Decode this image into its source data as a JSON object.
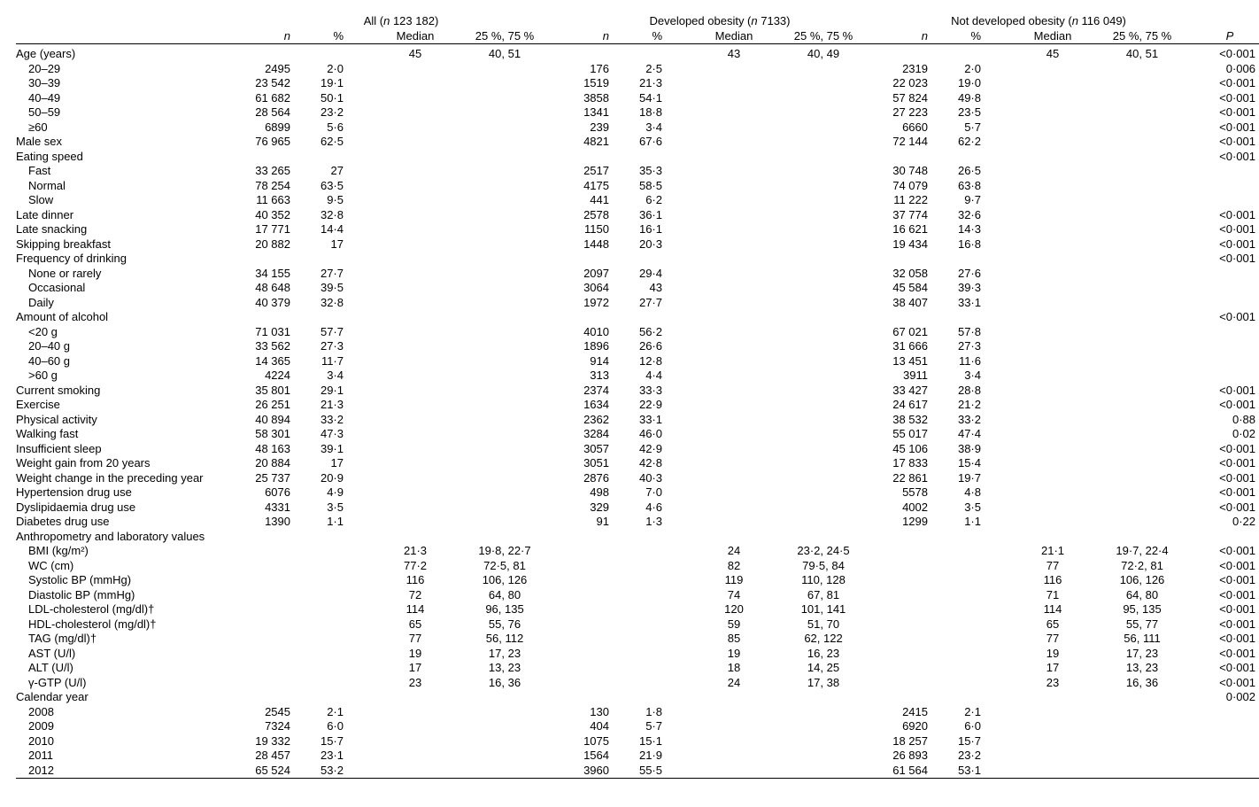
{
  "groups": [
    {
      "title_prefix": "All (",
      "n_label": "n",
      "n_value": " 123 182)",
      "hdrs": [
        "n",
        "%",
        "Median",
        "25 %, 75 %"
      ]
    },
    {
      "title_prefix": "Developed obesity (",
      "n_label": "n",
      "n_value": " 7133)",
      "hdrs": [
        "n",
        "%",
        "Median",
        "25 %, 75 %"
      ]
    },
    {
      "title_prefix": "Not developed obesity (",
      "n_label": "n",
      "n_value": " 116 049)",
      "hdrs": [
        "n",
        "%",
        "Median",
        "25 %, 75 %"
      ]
    }
  ],
  "p_label": "P",
  "rows": [
    {
      "lbl": "Age (years)",
      "ind": 0,
      "a": [
        "",
        "",
        "45",
        "40, 51"
      ],
      "b": [
        "",
        "",
        "43",
        "40, 49"
      ],
      "c": [
        "",
        "",
        "45",
        "40, 51"
      ],
      "p": "<0·001"
    },
    {
      "lbl": "20–29",
      "ind": 1,
      "a": [
        "2495",
        "2·0",
        "",
        ""
      ],
      "b": [
        "176",
        "2·5",
        "",
        ""
      ],
      "c": [
        "2319",
        "2·0",
        "",
        ""
      ],
      "p": "0·006"
    },
    {
      "lbl": "30–39",
      "ind": 1,
      "a": [
        "23 542",
        "19·1",
        "",
        ""
      ],
      "b": [
        "1519",
        "21·3",
        "",
        ""
      ],
      "c": [
        "22 023",
        "19·0",
        "",
        ""
      ],
      "p": "<0·001"
    },
    {
      "lbl": "40–49",
      "ind": 1,
      "a": [
        "61 682",
        "50·1",
        "",
        ""
      ],
      "b": [
        "3858",
        "54·1",
        "",
        ""
      ],
      "c": [
        "57 824",
        "49·8",
        "",
        ""
      ],
      "p": "<0·001"
    },
    {
      "lbl": "50–59",
      "ind": 1,
      "a": [
        "28 564",
        "23·2",
        "",
        ""
      ],
      "b": [
        "1341",
        "18·8",
        "",
        ""
      ],
      "c": [
        "27 223",
        "23·5",
        "",
        ""
      ],
      "p": "<0·001"
    },
    {
      "lbl": "≥60",
      "ind": 1,
      "a": [
        "6899",
        "5·6",
        "",
        ""
      ],
      "b": [
        "239",
        "3·4",
        "",
        ""
      ],
      "c": [
        "6660",
        "5·7",
        "",
        ""
      ],
      "p": "<0·001"
    },
    {
      "lbl": "Male sex",
      "ind": 0,
      "a": [
        "76 965",
        "62·5",
        "",
        ""
      ],
      "b": [
        "4821",
        "67·6",
        "",
        ""
      ],
      "c": [
        "72 144",
        "62·2",
        "",
        ""
      ],
      "p": "<0·001"
    },
    {
      "lbl": "Eating speed",
      "ind": 0,
      "a": [
        "",
        "",
        "",
        ""
      ],
      "b": [
        "",
        "",
        "",
        ""
      ],
      "c": [
        "",
        "",
        "",
        ""
      ],
      "p": "<0·001"
    },
    {
      "lbl": "Fast",
      "ind": 1,
      "a": [
        "33 265",
        "27",
        "",
        ""
      ],
      "b": [
        "2517",
        "35·3",
        "",
        ""
      ],
      "c": [
        "30 748",
        "26·5",
        "",
        ""
      ],
      "p": ""
    },
    {
      "lbl": "Normal",
      "ind": 1,
      "a": [
        "78 254",
        "63·5",
        "",
        ""
      ],
      "b": [
        "4175",
        "58·5",
        "",
        ""
      ],
      "c": [
        "74 079",
        "63·8",
        "",
        ""
      ],
      "p": ""
    },
    {
      "lbl": "Slow",
      "ind": 1,
      "a": [
        "11 663",
        "9·5",
        "",
        ""
      ],
      "b": [
        "441",
        "6·2",
        "",
        ""
      ],
      "c": [
        "11 222",
        "9·7",
        "",
        ""
      ],
      "p": ""
    },
    {
      "lbl": "Late dinner",
      "ind": 0,
      "a": [
        "40 352",
        "32·8",
        "",
        ""
      ],
      "b": [
        "2578",
        "36·1",
        "",
        ""
      ],
      "c": [
        "37 774",
        "32·6",
        "",
        ""
      ],
      "p": "<0·001"
    },
    {
      "lbl": "Late snacking",
      "ind": 0,
      "a": [
        "17 771",
        "14·4",
        "",
        ""
      ],
      "b": [
        "1150",
        "16·1",
        "",
        ""
      ],
      "c": [
        "16 621",
        "14·3",
        "",
        ""
      ],
      "p": "<0·001"
    },
    {
      "lbl": "Skipping breakfast",
      "ind": 0,
      "a": [
        "20 882",
        "17",
        "",
        ""
      ],
      "b": [
        "1448",
        "20·3",
        "",
        ""
      ],
      "c": [
        "19 434",
        "16·8",
        "",
        ""
      ],
      "p": "<0·001"
    },
    {
      "lbl": "Frequency of drinking",
      "ind": 0,
      "a": [
        "",
        "",
        "",
        ""
      ],
      "b": [
        "",
        "",
        "",
        ""
      ],
      "c": [
        "",
        "",
        "",
        ""
      ],
      "p": "<0·001"
    },
    {
      "lbl": "None or rarely",
      "ind": 1,
      "a": [
        "34 155",
        "27·7",
        "",
        ""
      ],
      "b": [
        "2097",
        "29·4",
        "",
        ""
      ],
      "c": [
        "32 058",
        "27·6",
        "",
        ""
      ],
      "p": ""
    },
    {
      "lbl": "Occasional",
      "ind": 1,
      "a": [
        "48 648",
        "39·5",
        "",
        ""
      ],
      "b": [
        "3064",
        "43",
        "",
        ""
      ],
      "c": [
        "45 584",
        "39·3",
        "",
        ""
      ],
      "p": ""
    },
    {
      "lbl": "Daily",
      "ind": 1,
      "a": [
        "40 379",
        "32·8",
        "",
        ""
      ],
      "b": [
        "1972",
        "27·7",
        "",
        ""
      ],
      "c": [
        "38 407",
        "33·1",
        "",
        ""
      ],
      "p": ""
    },
    {
      "lbl": "Amount of alcohol",
      "ind": 0,
      "a": [
        "",
        "",
        "",
        ""
      ],
      "b": [
        "",
        "",
        "",
        ""
      ],
      "c": [
        "",
        "",
        "",
        ""
      ],
      "p": "<0·001"
    },
    {
      "lbl": "<20 g",
      "ind": 1,
      "a": [
        "71 031",
        "57·7",
        "",
        ""
      ],
      "b": [
        "4010",
        "56·2",
        "",
        ""
      ],
      "c": [
        "67 021",
        "57·8",
        "",
        ""
      ],
      "p": ""
    },
    {
      "lbl": "20–40 g",
      "ind": 1,
      "a": [
        "33 562",
        "27·3",
        "",
        ""
      ],
      "b": [
        "1896",
        "26·6",
        "",
        ""
      ],
      "c": [
        "31 666",
        "27·3",
        "",
        ""
      ],
      "p": ""
    },
    {
      "lbl": "40–60 g",
      "ind": 1,
      "a": [
        "14 365",
        "11·7",
        "",
        ""
      ],
      "b": [
        "914",
        "12·8",
        "",
        ""
      ],
      "c": [
        "13 451",
        "11·6",
        "",
        ""
      ],
      "p": ""
    },
    {
      "lbl": ">60 g",
      "ind": 1,
      "a": [
        "4224",
        "3·4",
        "",
        ""
      ],
      "b": [
        "313",
        "4·4",
        "",
        ""
      ],
      "c": [
        "3911",
        "3·4",
        "",
        ""
      ],
      "p": ""
    },
    {
      "lbl": "Current smoking",
      "ind": 0,
      "a": [
        "35 801",
        "29·1",
        "",
        ""
      ],
      "b": [
        "2374",
        "33·3",
        "",
        ""
      ],
      "c": [
        "33 427",
        "28·8",
        "",
        ""
      ],
      "p": "<0·001"
    },
    {
      "lbl": "Exercise",
      "ind": 0,
      "a": [
        "26 251",
        "21·3",
        "",
        ""
      ],
      "b": [
        "1634",
        "22·9",
        "",
        ""
      ],
      "c": [
        "24 617",
        "21·2",
        "",
        ""
      ],
      "p": "<0·001"
    },
    {
      "lbl": "Physical activity",
      "ind": 0,
      "a": [
        "40 894",
        "33·2",
        "",
        ""
      ],
      "b": [
        "2362",
        "33·1",
        "",
        ""
      ],
      "c": [
        "38 532",
        "33·2",
        "",
        ""
      ],
      "p": "0·88"
    },
    {
      "lbl": "Walking fast",
      "ind": 0,
      "a": [
        "58 301",
        "47·3",
        "",
        ""
      ],
      "b": [
        "3284",
        "46·0",
        "",
        ""
      ],
      "c": [
        "55 017",
        "47·4",
        "",
        ""
      ],
      "p": "0·02"
    },
    {
      "lbl": "Insufficient sleep",
      "ind": 0,
      "a": [
        "48 163",
        "39·1",
        "",
        ""
      ],
      "b": [
        "3057",
        "42·9",
        "",
        ""
      ],
      "c": [
        "45 106",
        "38·9",
        "",
        ""
      ],
      "p": "<0·001"
    },
    {
      "lbl": "Weight gain from 20 years",
      "ind": 0,
      "a": [
        "20 884",
        "17",
        "",
        ""
      ],
      "b": [
        "3051",
        "42·8",
        "",
        ""
      ],
      "c": [
        "17 833",
        "15·4",
        "",
        ""
      ],
      "p": "<0·001"
    },
    {
      "lbl": "Weight change in the preceding year",
      "ind": 0,
      "a": [
        "25 737",
        "20·9",
        "",
        ""
      ],
      "b": [
        "2876",
        "40·3",
        "",
        ""
      ],
      "c": [
        "22 861",
        "19·7",
        "",
        ""
      ],
      "p": "<0·001"
    },
    {
      "lbl": "Hypertension drug use",
      "ind": 0,
      "a": [
        "6076",
        "4·9",
        "",
        ""
      ],
      "b": [
        "498",
        "7·0",
        "",
        ""
      ],
      "c": [
        "5578",
        "4·8",
        "",
        ""
      ],
      "p": "<0·001"
    },
    {
      "lbl": "Dyslipidaemia drug use",
      "ind": 0,
      "a": [
        "4331",
        "3·5",
        "",
        ""
      ],
      "b": [
        "329",
        "4·6",
        "",
        ""
      ],
      "c": [
        "4002",
        "3·5",
        "",
        ""
      ],
      "p": "<0·001"
    },
    {
      "lbl": "Diabetes drug use",
      "ind": 0,
      "a": [
        "1390",
        "1·1",
        "",
        ""
      ],
      "b": [
        "91",
        "1·3",
        "",
        ""
      ],
      "c": [
        "1299",
        "1·1",
        "",
        ""
      ],
      "p": "0·22"
    },
    {
      "lbl": "Anthropometry and laboratory values",
      "ind": 0,
      "a": [
        "",
        "",
        "",
        ""
      ],
      "b": [
        "",
        "",
        "",
        ""
      ],
      "c": [
        "",
        "",
        "",
        ""
      ],
      "p": ""
    },
    {
      "lbl": "BMI (kg/m²)",
      "ind": 1,
      "a": [
        "",
        "",
        "21·3",
        "19·8, 22·7"
      ],
      "b": [
        "",
        "",
        "24",
        "23·2, 24·5"
      ],
      "c": [
        "",
        "",
        "21·1",
        "19·7, 22·4"
      ],
      "p": "<0·001"
    },
    {
      "lbl": "WC (cm)",
      "ind": 1,
      "a": [
        "",
        "",
        "77·2",
        "72·5, 81"
      ],
      "b": [
        "",
        "",
        "82",
        "79·5, 84"
      ],
      "c": [
        "",
        "",
        "77",
        "72·2, 81"
      ],
      "p": "<0·001"
    },
    {
      "lbl": "Systolic BP (mmHg)",
      "ind": 1,
      "a": [
        "",
        "",
        "116",
        "106, 126"
      ],
      "b": [
        "",
        "",
        "119",
        "110, 128"
      ],
      "c": [
        "",
        "",
        "116",
        "106, 126"
      ],
      "p": "<0·001"
    },
    {
      "lbl": "Diastolic BP (mmHg)",
      "ind": 1,
      "a": [
        "",
        "",
        "72",
        "64, 80"
      ],
      "b": [
        "",
        "",
        "74",
        "67, 81"
      ],
      "c": [
        "",
        "",
        "71",
        "64, 80"
      ],
      "p": "<0·001"
    },
    {
      "lbl": "LDL-cholesterol (mg/dl)†",
      "ind": 1,
      "a": [
        "",
        "",
        "114",
        "96, 135"
      ],
      "b": [
        "",
        "",
        "120",
        "101, 141"
      ],
      "c": [
        "",
        "",
        "114",
        "95, 135"
      ],
      "p": "<0·001"
    },
    {
      "lbl": "HDL-cholesterol (mg/dl)†",
      "ind": 1,
      "a": [
        "",
        "",
        "65",
        "55, 76"
      ],
      "b": [
        "",
        "",
        "59",
        "51, 70"
      ],
      "c": [
        "",
        "",
        "65",
        "55, 77"
      ],
      "p": "<0·001"
    },
    {
      "lbl": "TAG (mg/dl)†",
      "ind": 1,
      "a": [
        "",
        "",
        "77",
        "56, 112"
      ],
      "b": [
        "",
        "",
        "85",
        "62, 122"
      ],
      "c": [
        "",
        "",
        "77",
        "56, 111"
      ],
      "p": "<0·001"
    },
    {
      "lbl": "AST (U/l)",
      "ind": 1,
      "a": [
        "",
        "",
        "19",
        "17, 23"
      ],
      "b": [
        "",
        "",
        "19",
        "16, 23"
      ],
      "c": [
        "",
        "",
        "19",
        "17, 23"
      ],
      "p": "<0·001"
    },
    {
      "lbl": "ALT (U/l)",
      "ind": 1,
      "a": [
        "",
        "",
        "17",
        "13, 23"
      ],
      "b": [
        "",
        "",
        "18",
        "14, 25"
      ],
      "c": [
        "",
        "",
        "17",
        "13, 23"
      ],
      "p": "<0·001"
    },
    {
      "lbl": "γ-GTP (U/l)",
      "ind": 1,
      "a": [
        "",
        "",
        "23",
        "16, 36"
      ],
      "b": [
        "",
        "",
        "24",
        "17, 38"
      ],
      "c": [
        "",
        "",
        "23",
        "16, 36"
      ],
      "p": "<0·001"
    },
    {
      "lbl": "Calendar year",
      "ind": 0,
      "a": [
        "",
        "",
        "",
        ""
      ],
      "b": [
        "",
        "",
        "",
        ""
      ],
      "c": [
        "",
        "",
        "",
        ""
      ],
      "p": "0·002"
    },
    {
      "lbl": "2008",
      "ind": 1,
      "a": [
        "2545",
        "2·1",
        "",
        ""
      ],
      "b": [
        "130",
        "1·8",
        "",
        ""
      ],
      "c": [
        "2415",
        "2·1",
        "",
        ""
      ],
      "p": ""
    },
    {
      "lbl": "2009",
      "ind": 1,
      "a": [
        "7324",
        "6·0",
        "",
        ""
      ],
      "b": [
        "404",
        "5·7",
        "",
        ""
      ],
      "c": [
        "6920",
        "6·0",
        "",
        ""
      ],
      "p": ""
    },
    {
      "lbl": "2010",
      "ind": 1,
      "a": [
        "19 332",
        "15·7",
        "",
        ""
      ],
      "b": [
        "1075",
        "15·1",
        "",
        ""
      ],
      "c": [
        "18 257",
        "15·7",
        "",
        ""
      ],
      "p": ""
    },
    {
      "lbl": "2011",
      "ind": 1,
      "a": [
        "28 457",
        "23·1",
        "",
        ""
      ],
      "b": [
        "1564",
        "21·9",
        "",
        ""
      ],
      "c": [
        "26 893",
        "23·2",
        "",
        ""
      ],
      "p": ""
    },
    {
      "lbl": "2012",
      "ind": 1,
      "a": [
        "65 524",
        "53·2",
        "",
        ""
      ],
      "b": [
        "3960",
        "55·5",
        "",
        ""
      ],
      "c": [
        "61 564",
        "53·1",
        "",
        ""
      ],
      "p": ""
    }
  ],
  "colwidths": {
    "label": 258,
    "n": 82,
    "pct": 70,
    "med": 82,
    "iqr": 120,
    "gap": 6,
    "p": 66
  }
}
